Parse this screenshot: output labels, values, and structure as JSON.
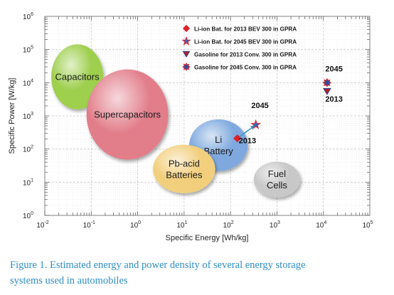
{
  "chart_data": {
    "type": "scatter",
    "title": "",
    "xlabel": "Specific Energy [Wh/kg]",
    "ylabel": "Specific Power [W/kg]",
    "xscale": "log",
    "yscale": "log",
    "xlim": [
      0.01,
      100000
    ],
    "ylim": [
      1,
      1000000
    ],
    "x_ticks": [
      {
        "base": "10",
        "exp": "-2"
      },
      {
        "base": "10",
        "exp": "-1"
      },
      {
        "base": "10",
        "exp": "0"
      },
      {
        "base": "10",
        "exp": "1"
      },
      {
        "base": "10",
        "exp": "2"
      },
      {
        "base": "10",
        "exp": "3"
      },
      {
        "base": "10",
        "exp": "4"
      },
      {
        "base": "10",
        "exp": "5"
      }
    ],
    "y_ticks": [
      {
        "base": "10",
        "exp": "0"
      },
      {
        "base": "10",
        "exp": "1"
      },
      {
        "base": "10",
        "exp": "2"
      },
      {
        "base": "10",
        "exp": "3"
      },
      {
        "base": "10",
        "exp": "4"
      },
      {
        "base": "10",
        "exp": "5"
      },
      {
        "base": "10",
        "exp": "6"
      }
    ],
    "grid": true,
    "regions": [
      {
        "label_lines": [
          "Capacitors"
        ],
        "cx": 0.05,
        "cy": 15000,
        "rx_dec": 0.56,
        "ry_dec": 0.98,
        "color": "#9ecf4d",
        "label_dy": 0,
        "font": 13
      },
      {
        "label_lines": [
          "Supercapacitors"
        ],
        "cx": 0.6,
        "cy": 1100,
        "rx_dec": 0.88,
        "ry_dec": 1.36,
        "color": "#e27d8a",
        "label_dy": 0,
        "font": 13
      },
      {
        "label_lines": [
          "Li",
          "Battery"
        ],
        "cx": 55,
        "cy": 130,
        "rx_dec": 0.63,
        "ry_dec": 0.78,
        "color": "#7fa9de",
        "label_dy": 0,
        "font": 13
      },
      {
        "label_lines": [
          "Pb-acid",
          "Batteries"
        ],
        "cx": 10,
        "cy": 25,
        "rx_dec": 0.67,
        "ry_dec": 0.73,
        "color": "#f2cf7c",
        "label_dy": 0,
        "font": 13
      },
      {
        "label_lines": [
          "Fuel",
          "Cells"
        ],
        "cx": 1000,
        "cy": 12,
        "rx_dec": 0.5,
        "ry_dec": 0.54,
        "color": "#c8c8c8",
        "label_dy": 0,
        "font": 13
      }
    ],
    "series": [
      {
        "name": "Li-ion Bat. for 2013 BEV 300 in GPRA",
        "marker": "diamond",
        "color": "#e0202a",
        "points": [
          {
            "x": 140,
            "y": 210
          }
        ]
      },
      {
        "name": "Li-ion Bat. for 2045 BEV 300 in GPRA",
        "marker": "star",
        "color": "#2f6fc0",
        "edge": "#e0202a",
        "points": [
          {
            "x": 350,
            "y": 540
          }
        ]
      },
      {
        "name": "Gasoline for 2013 Conv. 300 in GPRA",
        "marker": "triangle-down",
        "color": "#b0202a",
        "edge": "#2f3f8f",
        "points": [
          {
            "x": 12000,
            "y": 5500
          }
        ]
      },
      {
        "name": "Gasoline for 2045 Conv. 300 in GPRA",
        "marker": "burst",
        "color": "#2f4fa0",
        "edge": "#e0202a",
        "points": [
          {
            "x": 12000,
            "y": 10000
          }
        ]
      }
    ],
    "annotations": [
      {
        "text": "2013",
        "x": 150,
        "y": 150
      },
      {
        "text": "2045",
        "x": 280,
        "y": 1700
      },
      {
        "text": "2045",
        "x": 11000,
        "y": 22000
      },
      {
        "text": "2013",
        "x": 11000,
        "y": 2700
      }
    ],
    "arrow": {
      "from": {
        "x": 140,
        "y": 210
      },
      "to": {
        "x": 340,
        "y": 520
      },
      "color": "#3a93c8"
    },
    "legend_position": "top-right"
  },
  "caption": {
    "line1": "Figure 1. Estimated energy and power density of several energy storage",
    "line2": "systems used in automobiles"
  }
}
